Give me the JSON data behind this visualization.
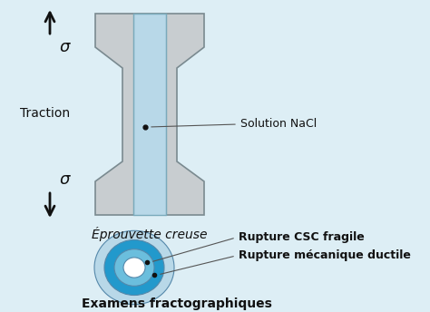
{
  "background_color": "#ddeef5",
  "specimen_color": "#c8cdd0",
  "specimen_edge_color": "#7a8a90",
  "solution_color": "#b8d8e8",
  "solution_edge_color": "#7aaabb",
  "label_traction": "Traction",
  "label_eprouvette": "Éprouvette creuse",
  "label_solution": "Solution NaCl",
  "label_examens": "Examens fractographiques",
  "label_rupture_csc": "Rupture CSC fragile",
  "label_rupture_mec": "Rupture mécanique ductile",
  "label_sigma": "σ",
  "arrow_color": "#111111",
  "text_color": "#111111",
  "circle_outermost_color": "#b8d8e8",
  "circle_mid_color": "#2299cc",
  "circle_inner_light_color": "#6bbedd",
  "circle_center_color": "#ffffff",
  "circle_edge_color": "#5588aa",
  "line_color": "#555555"
}
